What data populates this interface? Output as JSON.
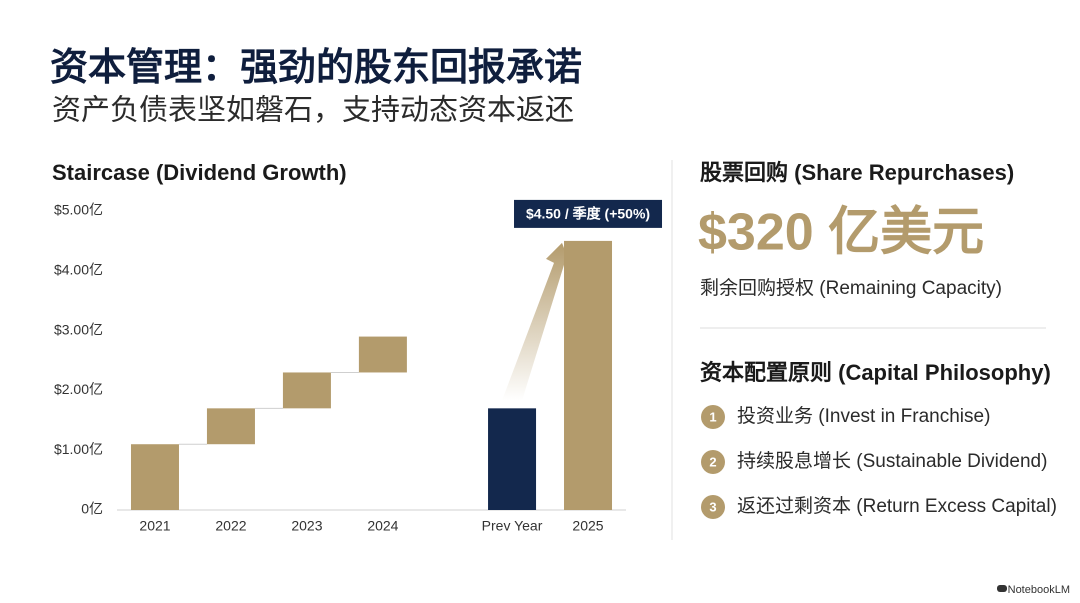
{
  "header": {
    "title": "资本管理：强劲的股东回报承诺",
    "subtitle": "资产负债表坚如磐石，支持动态资本返还"
  },
  "chart_data": {
    "type": "waterfall",
    "title": "Staircase (Dividend Growth)",
    "categories": [
      "2021",
      "2022",
      "2023",
      "2024",
      null,
      "Prev Year",
      "2025"
    ],
    "values": [
      1.1,
      0.6,
      0.6,
      0.6,
      null,
      1.7,
      4.5
    ],
    "measure": [
      "relative",
      "relative",
      "relative",
      "relative",
      null,
      "absolute",
      "absolute"
    ],
    "colors": [
      "#b39b6c",
      "#b39b6c",
      "#b39b6c",
      "#b39b6c",
      null,
      "#13284d",
      "#b39b6c"
    ],
    "ylim": [
      0,
      5
    ],
    "yticks": [
      {
        "value": 0,
        "label": "0亿"
      },
      {
        "value": 1,
        "label": "$1.00亿"
      },
      {
        "value": 2,
        "label": "$2.00亿"
      },
      {
        "value": 3,
        "label": "$3.00亿"
      },
      {
        "value": 4,
        "label": "$4.00亿"
      },
      {
        "value": 5,
        "label": "$5.00亿"
      }
    ],
    "grid": false,
    "annotation": "$4.50 / 季度 (+50%)"
  },
  "right_panel": {
    "repurchase_title": "股票回购 (Share Repurchases)",
    "repurchase_amount": "$320 亿美元",
    "repurchase_caption": "剩余回购授权 (Remaining Capacity)",
    "philosophy_title": "资本配置原则 (Capital Philosophy)",
    "items": [
      {
        "number": "1",
        "text": "投资业务 (Invest in Franchise)"
      },
      {
        "number": "2",
        "text": "持续股息增长 (Sustainable Dividend)"
      },
      {
        "number": "3",
        "text": "返还过剩资本 (Return Excess Capital)"
      }
    ]
  },
  "footer": {
    "brand": "NotebookLM"
  }
}
